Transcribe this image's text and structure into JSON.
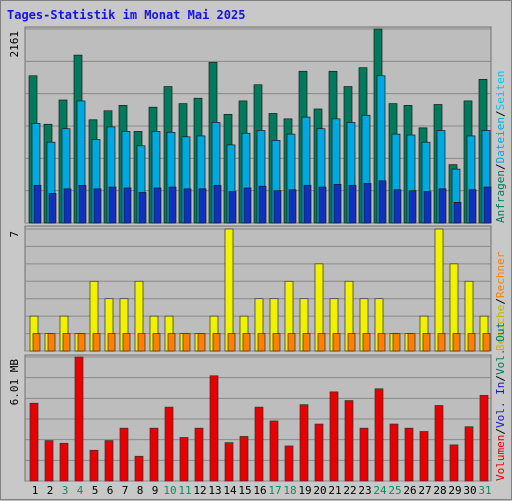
{
  "title": "Tages-Statistik im Monat Mai 2025",
  "colors": {
    "anfragen": "#007a5a",
    "dateien": "#00c8f0",
    "seiten": "#00a8e0",
    "besuche": "#f2f200",
    "rechner": "#ff8000",
    "volumen": "#e80000",
    "weekend": "#009060",
    "weekday": "#000000"
  },
  "chart_data": [
    {
      "type": "bar",
      "panel": "traffic",
      "ytick_label": "2161",
      "ymax": 2161,
      "right_legend": [
        {
          "text": "Anfragen",
          "color": "#007a5a"
        },
        {
          "text": "/",
          "color": "#000000"
        },
        {
          "text": "Dateien",
          "color": "#00a8e0"
        },
        {
          "text": "/",
          "color": "#000000"
        },
        {
          "text": "Seiten",
          "color": "#00c8f0"
        }
      ],
      "categories": [
        "1",
        "2",
        "3",
        "4",
        "5",
        "6",
        "7",
        "8",
        "9",
        "10",
        "11",
        "12",
        "13",
        "14",
        "15",
        "16",
        "17",
        "18",
        "19",
        "20",
        "21",
        "22",
        "23",
        "24",
        "25",
        "26",
        "27",
        "28",
        "29",
        "30",
        "31"
      ],
      "series": [
        {
          "name": "Anfragen",
          "values": [
            1640,
            1100,
            1370,
            1870,
            1150,
            1250,
            1310,
            1020,
            1290,
            1520,
            1330,
            1390,
            1790,
            1210,
            1360,
            1540,
            1220,
            1160,
            1690,
            1270,
            1690,
            1520,
            1730,
            2161,
            1330,
            1310,
            1060,
            1320,
            650,
            1360,
            1600
          ]
        },
        {
          "name": "Dateien",
          "values": [
            1110,
            900,
            1050,
            1360,
            930,
            1070,
            1020,
            860,
            1020,
            1010,
            960,
            970,
            1120,
            870,
            1000,
            1030,
            920,
            990,
            1180,
            1050,
            1160,
            1120,
            1200,
            1640,
            990,
            980,
            900,
            1030,
            600,
            970,
            1030
          ]
        },
        {
          "name": "Seiten",
          "values": [
            420,
            330,
            380,
            420,
            380,
            400,
            390,
            340,
            390,
            400,
            380,
            380,
            420,
            350,
            390,
            410,
            360,
            370,
            420,
            400,
            430,
            420,
            440,
            470,
            370,
            360,
            350,
            380,
            230,
            370,
            400
          ]
        }
      ]
    },
    {
      "type": "bar",
      "panel": "visits",
      "ytick_label": "7",
      "ymax": 7,
      "right_legend": [
        {
          "text": "Besuche",
          "color": "#c8b400"
        },
        {
          "text": "/",
          "color": "#000000"
        },
        {
          "text": "Rechner",
          "color": "#ff8000"
        }
      ],
      "categories": [
        "1",
        "2",
        "3",
        "4",
        "5",
        "6",
        "7",
        "8",
        "9",
        "10",
        "11",
        "12",
        "13",
        "14",
        "15",
        "16",
        "17",
        "18",
        "19",
        "20",
        "21",
        "22",
        "23",
        "24",
        "25",
        "26",
        "27",
        "28",
        "29",
        "30",
        "31"
      ],
      "series": [
        {
          "name": "Besuche",
          "values": [
            2,
            1,
            2,
            1,
            4,
            3,
            3,
            4,
            2,
            2,
            1,
            1,
            2,
            7,
            2,
            3,
            3,
            4,
            3,
            5,
            3,
            4,
            3,
            3,
            1,
            1,
            2,
            7,
            5,
            4,
            2
          ]
        },
        {
          "name": "Rechner",
          "values": [
            1,
            1,
            1,
            1,
            1,
            1,
            1,
            1,
            1,
            1,
            1,
            1,
            1,
            1,
            1,
            1,
            1,
            1,
            1,
            1,
            1,
            1,
            1,
            1,
            1,
            1,
            1,
            1,
            1,
            1,
            1
          ]
        }
      ]
    },
    {
      "type": "bar",
      "panel": "volume",
      "ytick_label": "6.01 MB",
      "ymax": 6.01,
      "right_legend": [
        {
          "text": "Volumen",
          "color": "#e80000"
        },
        {
          "text": "/",
          "color": "#000000"
        },
        {
          "text": "Vol. In",
          "color": "#1414e0"
        },
        {
          "text": "/",
          "color": "#000000"
        },
        {
          "text": "Vol. Out",
          "color": "#007a5a"
        }
      ],
      "categories": [
        "1",
        "2",
        "3",
        "4",
        "5",
        "6",
        "7",
        "8",
        "9",
        "10",
        "11",
        "12",
        "13",
        "14",
        "15",
        "16",
        "17",
        "18",
        "19",
        "20",
        "21",
        "22",
        "23",
        "24",
        "25",
        "26",
        "27",
        "28",
        "29",
        "30",
        "31"
      ],
      "series": [
        {
          "name": "Volumen",
          "values": [
            3.77,
            1.96,
            1.83,
            6.01,
            1.49,
            1.96,
            2.56,
            1.2,
            2.56,
            3.58,
            2.11,
            2.56,
            5.1,
            1.86,
            2.16,
            3.58,
            2.91,
            1.7,
            3.7,
            2.76,
            4.32,
            3.9,
            2.56,
            4.47,
            2.76,
            2.56,
            2.4,
            3.66,
            1.75,
            2.63,
            4.15
          ]
        }
      ]
    }
  ],
  "weekend_days": [
    "3",
    "4",
    "10",
    "11",
    "17",
    "18",
    "24",
    "25",
    "31"
  ]
}
